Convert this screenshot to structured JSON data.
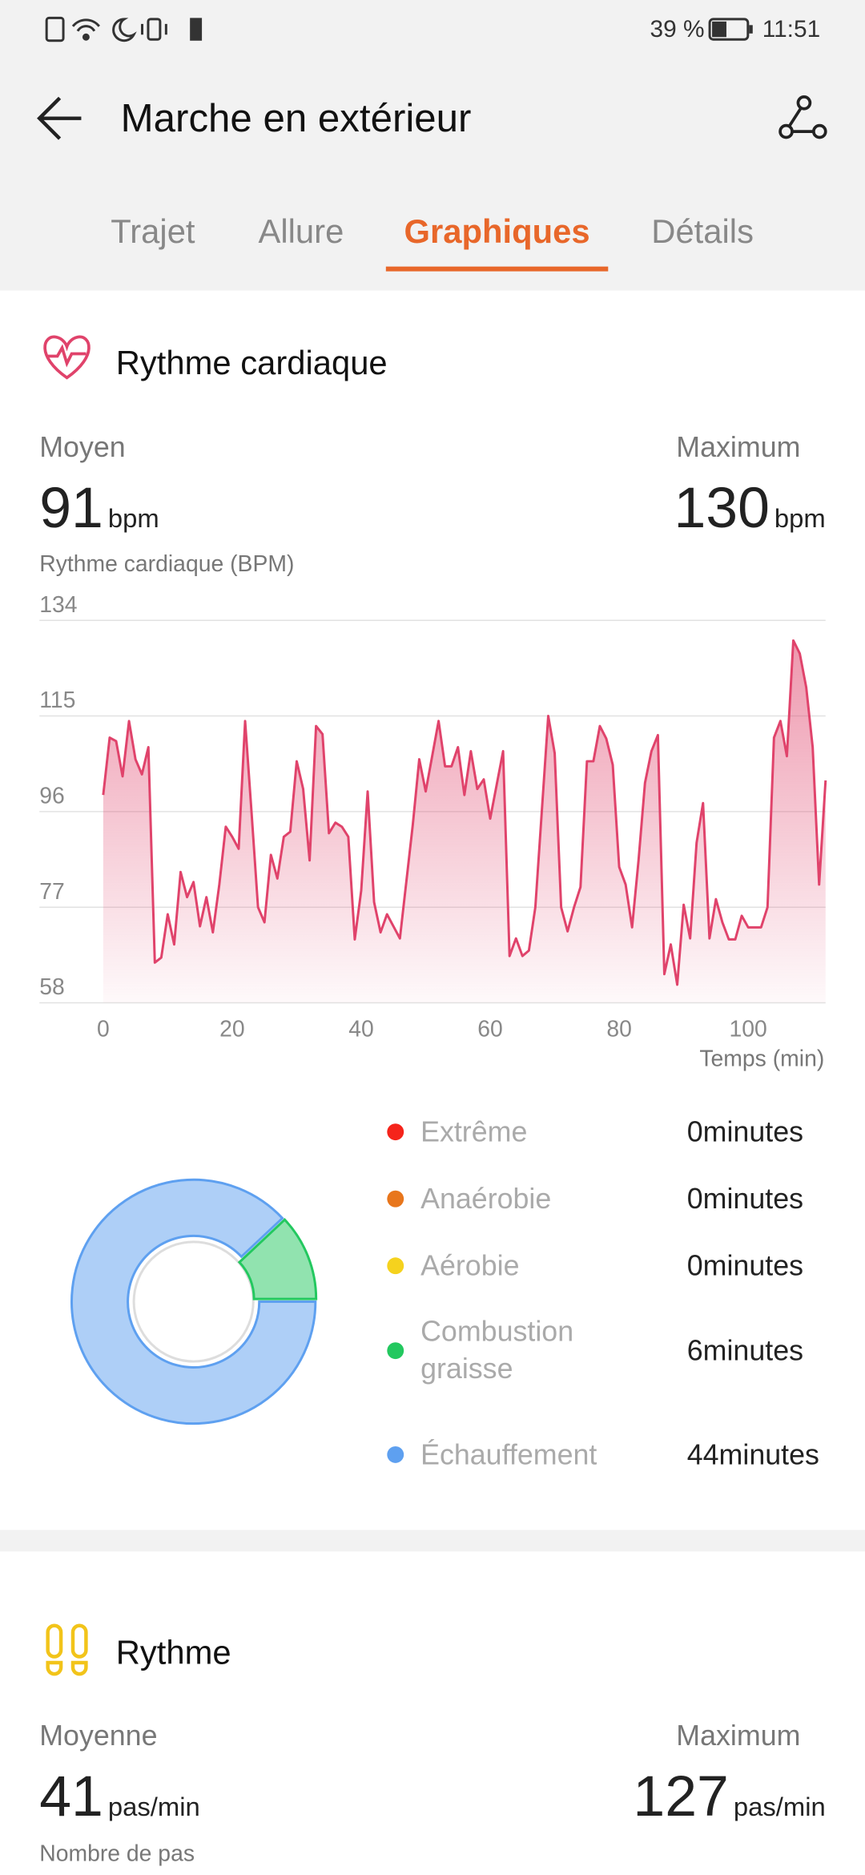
{
  "status_bar": {
    "battery": "39 %",
    "time": "11:51"
  },
  "header": {
    "title": "Marche en extérieur"
  },
  "tabs": [
    "Trajet",
    "Allure",
    "Graphiques",
    "Détails"
  ],
  "active_tab": 2,
  "heart_rate": {
    "title": "Rythme cardiaque",
    "average": {
      "label": "Moyen",
      "value": 91,
      "unit": "bpm"
    },
    "maximum": {
      "label": "Maximum",
      "value": 130,
      "unit": "bpm"
    },
    "chart_data": {
      "type": "line",
      "y_label": "Rythme cardiaque (BPM)",
      "x_label": "Temps (min)",
      "color": "#e0436b",
      "grid": true,
      "xlim": [
        -1,
        112
      ],
      "ylim": [
        58,
        134
      ],
      "xticks": [
        0,
        20,
        40,
        60,
        80,
        100
      ],
      "yticks": [
        58,
        77,
        96,
        115,
        134
      ],
      "x": [
        0,
        1,
        2,
        3,
        4,
        5,
        6,
        7,
        8,
        9,
        10,
        11,
        12,
        13,
        14,
        15,
        16,
        17,
        18,
        19,
        20,
        21,
        22,
        23,
        24,
        25,
        26,
        27,
        28,
        29,
        30,
        31,
        32,
        33,
        34,
        35,
        36,
        37,
        38,
        39,
        40,
        41,
        42,
        43,
        44,
        45,
        46,
        48,
        49,
        50,
        52,
        53,
        54,
        55,
        56,
        57,
        58,
        59,
        60,
        62,
        63,
        64,
        65,
        66,
        67,
        69,
        70,
        71,
        72,
        73,
        74,
        75,
        76,
        77,
        78,
        79,
        80,
        81,
        82,
        83,
        84,
        85,
        86,
        87,
        88,
        89,
        90,
        91,
        92,
        93,
        94,
        95,
        96,
        97,
        98,
        99,
        100,
        102,
        103,
        104,
        105,
        106,
        107,
        108,
        109,
        110,
        111,
        112
      ],
      "values": [
        99.3,
        110.7,
        110,
        103,
        114,
        106.4,
        103.4,
        108.8,
        66,
        67,
        75.6,
        69.6,
        84,
        79,
        82,
        73.2,
        79,
        72,
        81.5,
        93,
        91,
        88.6,
        114,
        95.8,
        77,
        74,
        87.4,
        82.7,
        91,
        92,
        106,
        100.5,
        86.3,
        113,
        111.4,
        91.7,
        93.8,
        93,
        91,
        70.6,
        80.3,
        100,
        78,
        72,
        75.6,
        73.2,
        70.8,
        93.4,
        106.4,
        100,
        114,
        105,
        105,
        108.8,
        99.3,
        108,
        100.5,
        102.4,
        94.6,
        108,
        67.3,
        70.8,
        67.3,
        68.4,
        77,
        115,
        107.6,
        77,
        72.2,
        77,
        81,
        106,
        106,
        113,
        110.5,
        105.3,
        85,
        81.5,
        73,
        86.3,
        101.7,
        108,
        111.2,
        63.7,
        69.6,
        61.6,
        77.5,
        70.8,
        89.8,
        97.7,
        70.8,
        78.6,
        74,
        70.6,
        70.6,
        75.3,
        73,
        73,
        77,
        110.7,
        114,
        107,
        130,
        127.4,
        120.7,
        108.8,
        81.5,
        102.2
      ]
    },
    "zones": [
      {
        "name": "Extrême",
        "minutes": 0,
        "label": "0minutes",
        "color": "#f5241b"
      },
      {
        "name": "Anaérobie",
        "minutes": 0,
        "label": "0minutes",
        "color": "#e8761c"
      },
      {
        "name": "Aérobie",
        "minutes": 0,
        "label": "0minutes",
        "color": "#f5d21e"
      },
      {
        "name": "Combustion graisse",
        "minutes": 6,
        "label": "6minutes",
        "color": "#23c85f"
      },
      {
        "name": "Échauffement",
        "minutes": 44,
        "label": "44minutes",
        "color": "#5ea0f0"
      }
    ]
  },
  "cadence": {
    "title": "Rythme",
    "average": {
      "label": "Moyenne",
      "value": 41,
      "unit": "pas/min"
    },
    "maximum": {
      "label": "Maximum",
      "value": 127,
      "unit": "pas/min"
    },
    "chart_label": "Nombre de pas"
  }
}
